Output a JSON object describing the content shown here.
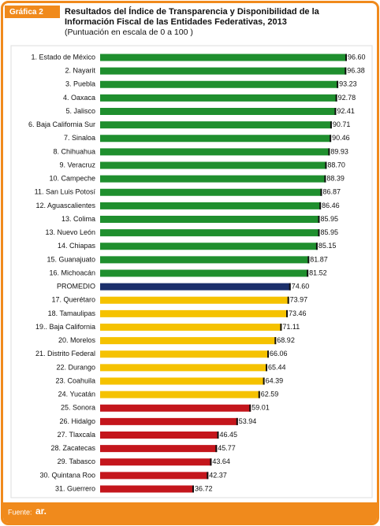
{
  "header_tag": "Gráfica 2",
  "chart_data": {
    "type": "hbar",
    "title_lines": [
      "Resultados del Índice de Transparencia y Disponibilidad de la",
      "Información Fiscal  de las Entidades Federativas, 2013"
    ],
    "subtitle": "(Puntuación en escala de  0 a 100 )",
    "categories": [
      "1. Estado de México",
      "2. Nayarit",
      "3. Puebla",
      "4. Oaxaca",
      "5. Jalisco",
      "6. Baja California Sur",
      "7. Sinaloa",
      "8. Chihuahua",
      "9. Veracruz",
      "10. Campeche",
      "11. San Luis Potosí",
      "12. Aguascalientes",
      "13. Colima",
      "13. Nuevo León",
      "14. Chiapas",
      "15. Guanajuato",
      "16. Michoacán",
      "PROMEDIO",
      "17. Querétaro",
      "18. Tamaulipas",
      "19.. Baja California",
      "20. Morelos",
      "21. Distrito Federal",
      "22. Durango",
      "23. Coahuila",
      "24. Yucatán",
      "25. Sonora",
      "26. Hidalgo",
      "27. Tlaxcala",
      "28. Zacatecas",
      "29. Tabasco",
      "30. Quintana Roo",
      "31. Guerrero"
    ],
    "values": [
      96.6,
      96.38,
      93.23,
      92.78,
      92.41,
      90.71,
      90.46,
      89.93,
      88.7,
      88.39,
      86.87,
      86.46,
      85.95,
      85.95,
      85.15,
      81.87,
      81.52,
      74.6,
      73.97,
      73.46,
      71.11,
      68.92,
      66.06,
      65.44,
      64.39,
      62.59,
      59.01,
      53.94,
      46.45,
      45.77,
      43.64,
      42.37,
      36.72
    ],
    "value_labels": [
      "96.60",
      "96.38",
      "93.23",
      "92.78",
      "92.41",
      "90.71",
      "90.46",
      "89.93",
      "88.70",
      "88.39",
      "86.87",
      "86.46",
      "85.95",
      "85.95",
      "85.15",
      "81.87",
      "81.52",
      "74.60",
      "73.97",
      "73.46",
      "71.11",
      "68.92",
      "66.06",
      "65.44",
      "64.39",
      "62.59",
      "59.01",
      "53.94",
      "46.45",
      "45.77",
      "43.64",
      "42.37",
      "36.72"
    ],
    "colors": [
      "#1f8f2e",
      "#1f8f2e",
      "#1f8f2e",
      "#1f8f2e",
      "#1f8f2e",
      "#1f8f2e",
      "#1f8f2e",
      "#1f8f2e",
      "#1f8f2e",
      "#1f8f2e",
      "#1f8f2e",
      "#1f8f2e",
      "#1f8f2e",
      "#1f8f2e",
      "#1f8f2e",
      "#1f8f2e",
      "#1f8f2e",
      "#1b2f6b",
      "#f5c200",
      "#f5c200",
      "#f5c200",
      "#f5c200",
      "#f5c200",
      "#f5c200",
      "#f5c200",
      "#f5c200",
      "#c4161c",
      "#c4161c",
      "#c4161c",
      "#c4161c",
      "#c4161c",
      "#c4161c",
      "#c4161c"
    ],
    "xlim": [
      0,
      100
    ]
  },
  "source": "Fuente:",
  "source_logo": "ar."
}
